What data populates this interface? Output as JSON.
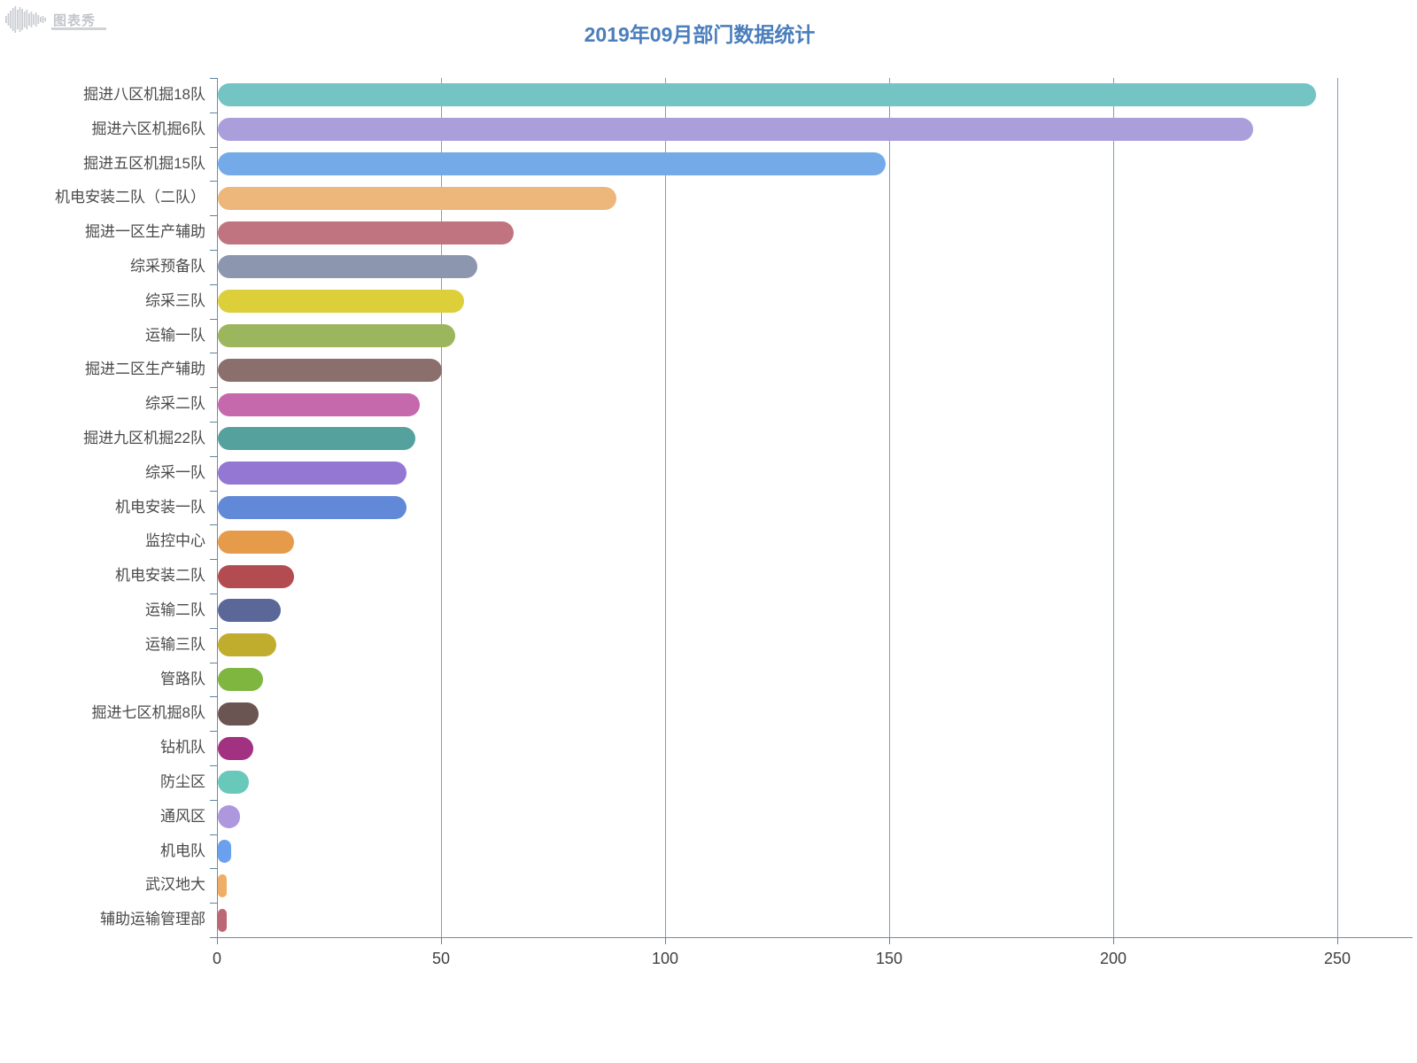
{
  "logo": {
    "text": "图表秀",
    "icon": "waveform-icon",
    "color": "#b9bcc4"
  },
  "title": "2019年09月部门数据统计",
  "title_color": "#4a7ebd",
  "chart_data": {
    "type": "bar",
    "orientation": "horizontal",
    "title": "2019年09月部门数据统计",
    "xlabel": "",
    "ylabel": "",
    "xlim": [
      0,
      250
    ],
    "grid": true,
    "x_ticks": [
      0,
      50,
      100,
      150,
      200,
      250
    ],
    "x_tick_labels": [
      "0",
      "50",
      "100",
      "150",
      "200",
      "250"
    ],
    "categories": [
      "掘进八区机掘18队",
      "掘进六区机掘6队",
      "掘进五区机掘15队",
      "机电安装二队（二队）",
      "掘进一区生产辅助",
      "综采预备队",
      "综采三队",
      "运输一队",
      "掘进二区生产辅助",
      "综采二队",
      "掘进九区机掘22队",
      "综采一队",
      "机电安装一队",
      "监控中心",
      "机电安装二队",
      "运输二队",
      "运输三队",
      "管路队",
      "掘进七区机掘8队",
      "钻机队",
      "防尘区",
      "通风区",
      "机电队",
      "武汉地大",
      "辅助运输管理部"
    ],
    "values": [
      245,
      231,
      149,
      89,
      66,
      58,
      55,
      53,
      50,
      45,
      44,
      42,
      42,
      17,
      17,
      14,
      13,
      10,
      9,
      8,
      7,
      5,
      3,
      2,
      2
    ],
    "colors": [
      "#74c4c4",
      "#ab9fdb",
      "#74aae8",
      "#edb77c",
      "#c0747f",
      "#8d96af",
      "#ddcf39",
      "#9cb65e",
      "#8b6f6d",
      "#c668ac",
      "#55a19e",
      "#9377d3",
      "#6289d8",
      "#e69b4b",
      "#b24c50",
      "#5a6798",
      "#c0ad2e",
      "#7eb63f",
      "#6b5552",
      "#a23181",
      "#68c8ba",
      "#ad98de",
      "#6aa0ee",
      "#eeae66",
      "#bd6674"
    ],
    "axis_color": "#6d8ca3",
    "grid_color": "#7f9eb4",
    "legend": "none"
  }
}
